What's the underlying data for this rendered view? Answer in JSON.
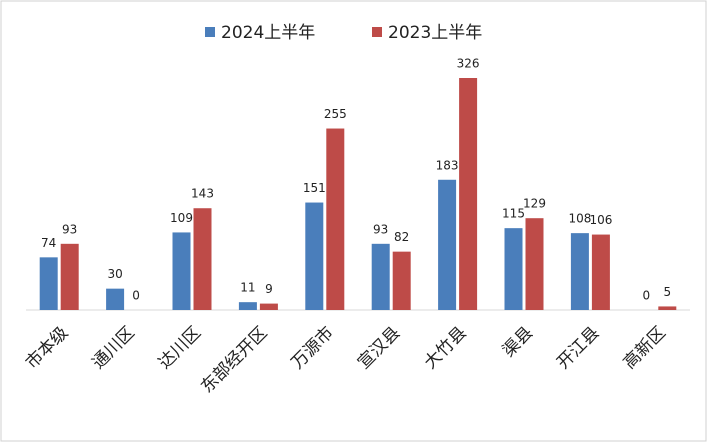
{
  "chart_data": {
    "type": "bar",
    "categories": [
      "市本级",
      "通川区",
      "达川区",
      "东部经开区",
      "万源市",
      "宣汉县",
      "大竹县",
      "渠县",
      "开江县",
      "高新区"
    ],
    "series": [
      {
        "name": "2024上半年",
        "color": "#4a7ebb",
        "values": [
          74,
          30,
          109,
          11,
          151,
          93,
          183,
          115,
          108,
          0
        ]
      },
      {
        "name": "2023上半年",
        "color": "#be4b48",
        "values": [
          93,
          0,
          143,
          9,
          255,
          82,
          326,
          129,
          106,
          5
        ]
      }
    ],
    "legend": "top"
  }
}
